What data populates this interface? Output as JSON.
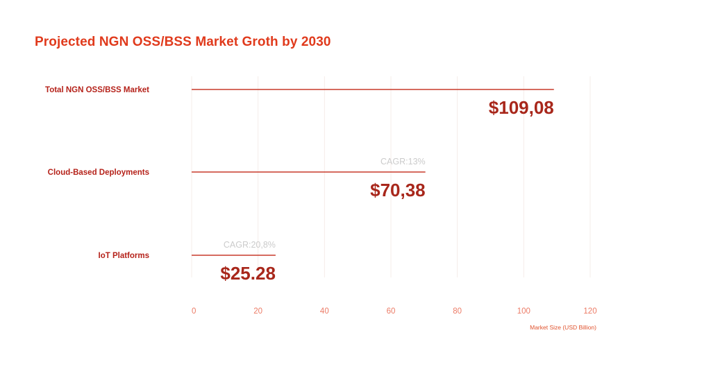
{
  "colors": {
    "title": "#e03a1c",
    "bar": "#c93a2a",
    "category": "#b5221a",
    "value": "#a8271b",
    "cagr": "#cbcbcb",
    "tick": "#ec7b66",
    "axis_title": "#e0522d",
    "grid": "#f5ece9"
  },
  "chart_data": {
    "type": "bar",
    "orientation": "horizontal",
    "title": "Projected NGN OSS/BSS Market Groth by 2030",
    "categories": [
      "Total NGN OSS/BSS Market",
      "Cloud-Based Deployments",
      "IoT Platforms"
    ],
    "values": [
      109.08,
      70.38,
      25.28
    ],
    "value_labels": [
      "$109,08",
      "$70,38",
      "$25.28"
    ],
    "annotations": [
      "",
      "CAGR:13%",
      "CAGR:20,8%"
    ],
    "xlim": [
      0,
      120
    ],
    "xticks": [
      0,
      20,
      40,
      60,
      80,
      100,
      120
    ],
    "xtick_labels": [
      "0",
      "20",
      "40",
      "60",
      "80",
      "100",
      "120"
    ],
    "xlabel": "Market Size (USD Billion)",
    "ylabel": "",
    "grid": true
  }
}
